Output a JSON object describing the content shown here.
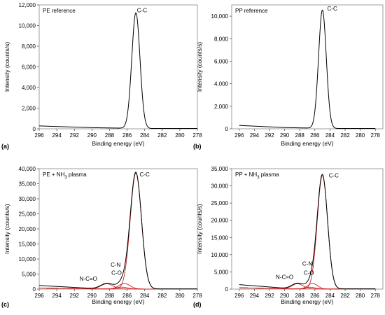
{
  "colors": {
    "envelope": "#000000",
    "component": "#cc2222",
    "background": "#ffffff"
  },
  "chart_data": [
    {
      "type": "line",
      "panel_label": "(a)",
      "title": "PE reference",
      "xlabel": "Binding energy (eV)",
      "ylabel": "Intensity (counts/s)",
      "xlim": [
        296,
        278
      ],
      "ylim": [
        0,
        12000
      ],
      "x_ticks": [
        "296",
        "294",
        "292",
        "290",
        "288",
        "286",
        "284",
        "282",
        "280",
        "278"
      ],
      "y_ticks": [
        "0",
        "2,000",
        "4,000",
        "6,000",
        "8,000",
        "10,000",
        "12,000"
      ],
      "peaks": [
        {
          "label": "C-C",
          "center": 285.0,
          "height": 11200,
          "fwhm": 1.1
        }
      ],
      "baseline": {
        "at_296": 280,
        "at_290": 110,
        "floor": 30
      },
      "annotations": [
        {
          "text": "C-C",
          "x": 284.3,
          "y": 11300
        }
      ]
    },
    {
      "type": "line",
      "panel_label": "(b)",
      "title": "PP reference",
      "xlabel": "Binding energy (eV)",
      "ylabel": "Intensity (counts/s)",
      "xlim": [
        297,
        277
      ],
      "ylim": [
        0,
        11000
      ],
      "x_ticks": [
        "296",
        "294",
        "292",
        "290",
        "288",
        "286",
        "284",
        "282",
        "280",
        "278"
      ],
      "y_ticks": [
        "0",
        "2,000",
        "4,000",
        "6,000",
        "8,000",
        "10,000"
      ],
      "peaks": [
        {
          "label": "C-C",
          "center": 285.0,
          "height": 10500,
          "fwhm": 1.2
        }
      ],
      "baseline": {
        "at_296": 300,
        "at_290": 110,
        "floor": 30
      },
      "annotations": [
        {
          "text": "C-C",
          "x": 283.7,
          "y": 10500
        }
      ]
    },
    {
      "type": "line",
      "panel_label": "(c)",
      "title": "PE + NH3 plasma",
      "xlabel": "Binding energy (eV)",
      "ylabel": "Intensity (counts/s)",
      "xlim": [
        296,
        278
      ],
      "ylim": [
        0,
        40000
      ],
      "x_ticks": [
        "296",
        "294",
        "292",
        "290",
        "288",
        "286",
        "284",
        "282",
        "280",
        "278"
      ],
      "y_ticks": [
        "0",
        "5,000",
        "10,000",
        "15,000",
        "20,000",
        "25,000",
        "30,000",
        "35,000",
        "40,000"
      ],
      "peaks": [
        {
          "label": "C-C",
          "center": 285.0,
          "height": 38500,
          "fwhm": 1.5
        },
        {
          "label": "C-N",
          "center": 286.3,
          "height": 1800,
          "fwhm": 1.5
        },
        {
          "label": "C-O",
          "center": 286.6,
          "height": 600,
          "fwhm": 1.5
        },
        {
          "label": "N-C=O",
          "center": 288.3,
          "height": 1700,
          "fwhm": 1.6
        }
      ],
      "baseline": {
        "at_296": 1200,
        "at_290": 250,
        "floor": 80
      },
      "annotations": [
        {
          "text": "C-C",
          "x": 284.0,
          "y": 37500
        },
        {
          "text": "C-N",
          "x": 287.3,
          "y": 7500
        },
        {
          "text": "C-O",
          "x": 287.2,
          "y": 4800
        },
        {
          "text": "N-C=O",
          "x": 290.4,
          "y": 2800
        }
      ]
    },
    {
      "type": "line",
      "panel_label": "(d)",
      "title": "PP + NH3 plasma",
      "xlabel": "Binding energy (eV)",
      "ylabel": "Intensity (counts/s)",
      "xlim": [
        297,
        277
      ],
      "ylim": [
        0,
        35000
      ],
      "x_ticks": [
        "296",
        "294",
        "292",
        "290",
        "288",
        "286",
        "284",
        "282",
        "280",
        "278"
      ],
      "y_ticks": [
        "0",
        "5,000",
        "10,000",
        "15,000",
        "20,000",
        "25,000",
        "30,000",
        "35,000"
      ],
      "peaks": [
        {
          "label": "C-C",
          "center": 285.0,
          "height": 33000,
          "fwhm": 1.6
        },
        {
          "label": "C-N",
          "center": 286.3,
          "height": 1600,
          "fwhm": 1.5
        },
        {
          "label": "C-O",
          "center": 286.6,
          "height": 500,
          "fwhm": 1.5
        },
        {
          "label": "N-C=O",
          "center": 288.3,
          "height": 1500,
          "fwhm": 1.7
        }
      ],
      "baseline": {
        "at_296": 1300,
        "at_290": 280,
        "floor": 80
      },
      "annotations": [
        {
          "text": "C-C",
          "x": 283.5,
          "y": 32500
        },
        {
          "text": "C-N",
          "x": 287.0,
          "y": 6800
        },
        {
          "text": "C-O",
          "x": 286.8,
          "y": 4200
        },
        {
          "text": "N-C=O",
          "x": 290.0,
          "y": 3000
        }
      ]
    }
  ]
}
